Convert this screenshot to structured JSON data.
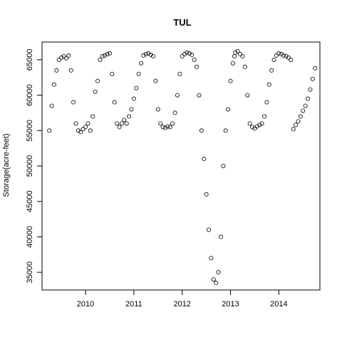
{
  "chart_data": {
    "type": "scatter",
    "title": "TUL",
    "xlabel": "",
    "ylabel": "Storage(acre-feet)",
    "xlim": [
      2009.1,
      2014.85
    ],
    "ylim": [
      32500,
      67500
    ],
    "x_ticks": [
      {
        "value": 2010,
        "label": "2010"
      },
      {
        "value": 2011,
        "label": "2011"
      },
      {
        "value": 2012,
        "label": "2012"
      },
      {
        "value": 2013,
        "label": "2013"
      },
      {
        "value": 2014,
        "label": "2014"
      }
    ],
    "y_ticks": [
      {
        "value": 35000,
        "label": "35000"
      },
      {
        "value": 40000,
        "label": "40000"
      },
      {
        "value": 45000,
        "label": "45000"
      },
      {
        "value": 50000,
        "label": "50000"
      },
      {
        "value": 55000,
        "label": "55000"
      },
      {
        "value": 60000,
        "label": "60000"
      },
      {
        "value": 65000,
        "label": "65000"
      }
    ],
    "marker": "open-circle",
    "series": [
      {
        "x": [
          2009.25,
          2009.3,
          2009.35,
          2009.4,
          2009.45,
          2009.5,
          2009.55,
          2009.6,
          2009.65,
          2009.7,
          2009.75,
          2009.8,
          2009.85,
          2009.9,
          2009.95,
          2010.0,
          2010.05,
          2010.1,
          2010.15,
          2010.2,
          2010.25,
          2010.3,
          2010.35,
          2010.4,
          2010.45,
          2010.5,
          2010.55,
          2010.6,
          2010.65,
          2010.7,
          2010.75,
          2010.8,
          2010.85,
          2010.9,
          2010.95,
          2011.0,
          2011.05,
          2011.1,
          2011.15,
          2011.2,
          2011.25,
          2011.3,
          2011.35,
          2011.4,
          2011.45,
          2011.5,
          2011.55,
          2011.6,
          2011.65,
          2011.7,
          2011.75,
          2011.8,
          2011.85,
          2011.9,
          2011.95,
          2012.0,
          2012.05,
          2012.1,
          2012.15,
          2012.2,
          2012.25,
          2012.3,
          2012.35,
          2012.4,
          2012.45,
          2012.5,
          2012.55,
          2012.6,
          2012.65,
          2012.7,
          2012.75,
          2012.8,
          2012.85,
          2012.9,
          2012.95,
          2013.0,
          2013.05,
          2013.08,
          2013.1,
          2013.15,
          2013.2,
          2013.25,
          2013.3,
          2013.35,
          2013.4,
          2013.45,
          2013.5,
          2013.55,
          2013.6,
          2013.65,
          2013.7,
          2013.75,
          2013.8,
          2013.85,
          2013.9,
          2013.95,
          2014.0,
          2014.05,
          2014.1,
          2014.15,
          2014.2,
          2014.25,
          2014.3,
          2014.35,
          2014.4,
          2014.45,
          2014.5,
          2014.55,
          2014.6,
          2014.65,
          2014.7,
          2014.75
        ],
        "y": [
          55000,
          58500,
          61500,
          63500,
          65000,
          65300,
          65500,
          65200,
          65600,
          63500,
          59000,
          56000,
          55000,
          54800,
          55200,
          55500,
          56000,
          55000,
          57000,
          60500,
          62000,
          65000,
          65500,
          65600,
          65800,
          65900,
          63000,
          59000,
          56000,
          55500,
          56000,
          56500,
          56000,
          57000,
          58000,
          59500,
          61000,
          63000,
          64500,
          65600,
          65800,
          65900,
          65700,
          65500,
          62000,
          58000,
          56000,
          55500,
          55400,
          55600,
          55500,
          56000,
          57500,
          60000,
          63000,
          65500,
          65800,
          66000,
          65900,
          65700,
          65000,
          64000,
          60000,
          55000,
          51000,
          46000,
          41000,
          37000,
          34000,
          33500,
          35000,
          40000,
          50000,
          55000,
          58000,
          62000,
          64500,
          65500,
          66000,
          66200,
          65800,
          65500,
          64000,
          60000,
          56000,
          55500,
          55300,
          55600,
          55800,
          56000,
          57000,
          59000,
          61500,
          63500,
          65000,
          65600,
          65900,
          65800,
          65600,
          65500,
          65300,
          65000,
          55200,
          55800,
          56300,
          57000,
          57800,
          58500,
          59500,
          60800,
          62300,
          63800
        ]
      }
    ]
  }
}
